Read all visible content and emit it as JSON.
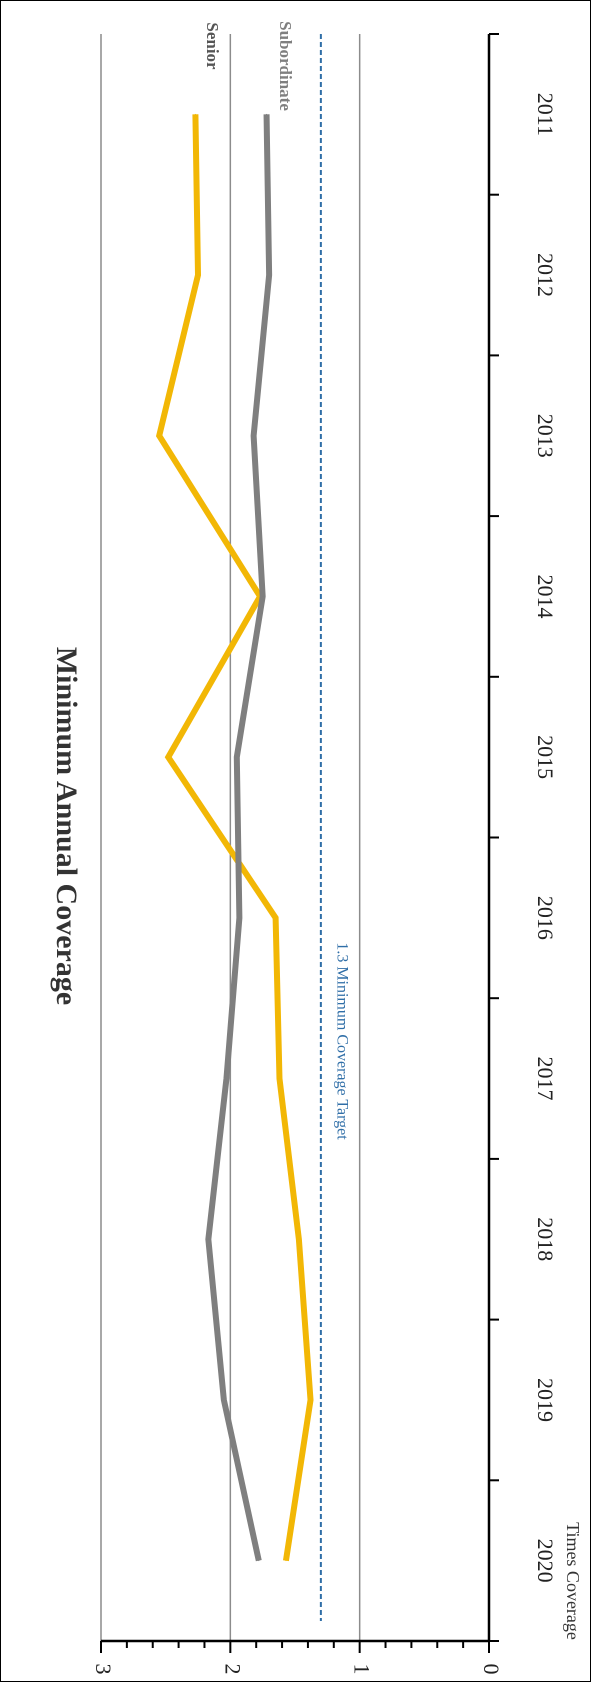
{
  "chart_data": {
    "type": "line",
    "title": "Minimum Annual Coverage",
    "xlabel": "",
    "ylabel": "Times Coverage",
    "categories": [
      "2011",
      "2012",
      "2013",
      "2014",
      "2015",
      "2016",
      "2017",
      "2018",
      "2019",
      "2020"
    ],
    "y_ticks": [
      "0",
      "1",
      "2",
      "3"
    ],
    "ylim": [
      0,
      3
    ],
    "grid": "horizontal major gridlines at 1, 2, 3",
    "orientation": "rotated 90 degrees clockwise",
    "series": [
      {
        "name": "Senior",
        "color": "#f2b705",
        "values": [
          2.27,
          2.25,
          2.55,
          1.77,
          2.48,
          1.65,
          1.62,
          1.47,
          1.38,
          1.57
        ]
      },
      {
        "name": "Subordinate",
        "color": "#7f7f7f",
        "values": [
          1.72,
          1.7,
          1.82,
          1.75,
          1.95,
          1.93,
          2.03,
          2.17,
          2.05,
          1.78
        ]
      }
    ],
    "reference_line": {
      "label": "1.3 Minimum Coverage Target",
      "value": 1.3,
      "color": "#2f6ea7",
      "style": "dashed"
    }
  }
}
